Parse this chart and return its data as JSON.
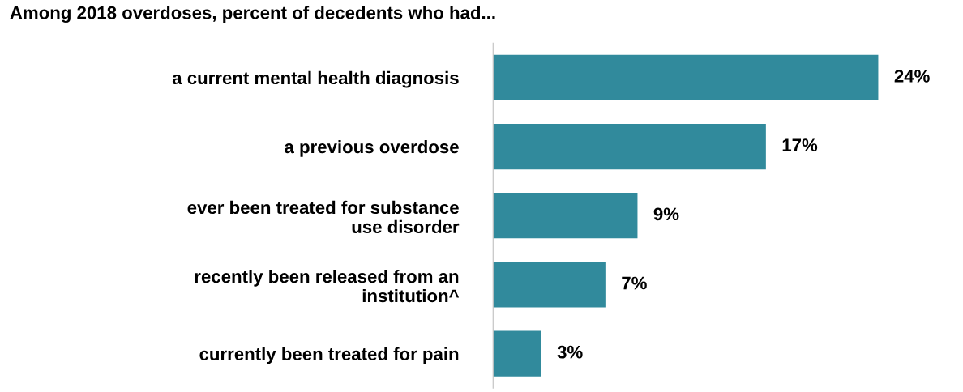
{
  "chart_data": {
    "type": "bar",
    "orientation": "horizontal",
    "title": "Among 2018 overdoses, percent of decedents who had...",
    "categories": [
      "a current mental health diagnosis",
      "a previous overdose",
      "ever been treated for substance use disorder",
      "recently been released from an institution^",
      "currently been treated for pain"
    ],
    "values": [
      24,
      17,
      9,
      7,
      3
    ],
    "value_labels": [
      "24%",
      "17%",
      "9%",
      "7%",
      "3%"
    ],
    "color": "#318a9c",
    "grid": false,
    "legend": false
  }
}
